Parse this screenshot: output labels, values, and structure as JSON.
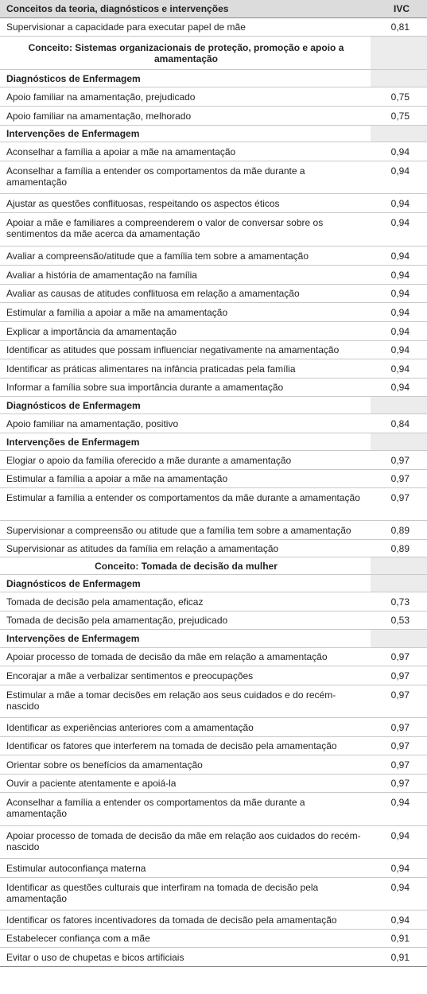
{
  "header": {
    "title": "Conceitos da teoria, diagnósticos e intervenções",
    "ivc": "IVC"
  },
  "rows": [
    {
      "type": "item",
      "text": "Supervisionar a capacidade para executar papel de mãe",
      "value": "0,81",
      "h": 23
    },
    {
      "type": "concept",
      "text": "Conceito: Sistemas organizacionais de proteção, promoção e apoio a amamentação",
      "value": "",
      "h": 42
    },
    {
      "type": "sec",
      "text": "Diagnósticos de Enfermagem",
      "value": "",
      "h": 22
    },
    {
      "type": "item",
      "text": "Apoio familiar na amamentação, prejudicado",
      "value": "0,75",
      "h": 24
    },
    {
      "type": "item",
      "text": "Apoio familiar na amamentação, melhorado",
      "value": "0,75",
      "h": 24
    },
    {
      "type": "sec",
      "text": "Intervenções de Enfermagem",
      "value": "",
      "h": 21
    },
    {
      "type": "item",
      "text": "Aconselhar a família a apoiar a mãe na amamentação",
      "value": "0,94",
      "h": 24
    },
    {
      "type": "item",
      "text": "Aconselhar a família a entender os comportamentos da mãe durante a amamentação",
      "value": "0,94",
      "h": 41
    },
    {
      "type": "item",
      "text": "Ajustar as questões conflituosas, respeitando os aspectos éticos",
      "value": "0,94",
      "h": 24
    },
    {
      "type": "item",
      "text": "Apoiar a mãe e familiares a compreenderem o valor de conversar sobre os sentimentos da mãe acerca da amamentação",
      "value": "0,94",
      "h": 42
    },
    {
      "type": "item",
      "text": "Avaliar a compreensão/atitude que a família tem sobre a amamentação",
      "value": "0,94",
      "h": 24
    },
    {
      "type": "item",
      "text": "Avaliar a história de amamentação na família",
      "value": "0,94",
      "h": 24
    },
    {
      "type": "item",
      "text": "Avaliar as causas de atitudes conflituosa em relação a amamentação",
      "value": "0,94",
      "h": 23
    },
    {
      "type": "item",
      "text": "Estimular a família a apoiar a mãe na amamentação",
      "value": "0,94",
      "h": 24
    },
    {
      "type": "item",
      "text": "Explicar a importância da amamentação",
      "value": "0,94",
      "h": 24
    },
    {
      "type": "item",
      "text": "Identificar as atitudes que possam influenciar negativamente na amamentação",
      "value": "0,94",
      "h": 23
    },
    {
      "type": "item",
      "text": "Identificar as práticas alimentares na infância praticadas pela família",
      "value": "0,94",
      "h": 24
    },
    {
      "type": "item",
      "text": "Informar a família sobre sua importância durante a amamentação",
      "value": "0,94",
      "h": 23
    },
    {
      "type": "sec",
      "text": "Diagnósticos de Enfermagem",
      "value": "",
      "h": 22
    },
    {
      "type": "item",
      "text": "Apoio familiar na amamentação, positivo",
      "value": "0,84",
      "h": 24
    },
    {
      "type": "sec",
      "text": "Intervenções de Enfermagem",
      "value": "",
      "h": 22
    },
    {
      "type": "item",
      "text": "Elogiar o apoio da família oferecido a mãe durante a amamentação",
      "value": "0,97",
      "h": 24
    },
    {
      "type": "item",
      "text": "Estimular a família a apoiar a mãe na amamentação",
      "value": "0,97",
      "h": 23
    },
    {
      "type": "item",
      "text": "Estimular a família a entender os comportamentos da mãe durante a amamentação",
      "value": "0,97",
      "h": 41
    },
    {
      "type": "item",
      "text": "Supervisionar a compreensão ou atitude que a família tem sobre a amamentação",
      "value": "0,89",
      "h": 24
    },
    {
      "type": "item",
      "text": "Supervisionar as atitudes da família em relação a amamentação",
      "value": "0,89",
      "h": 22
    },
    {
      "type": "concept",
      "text": "Conceito: Tomada de decisão da mulher",
      "value": "",
      "h": 22
    },
    {
      "type": "sec",
      "text": "Diagnósticos de Enfermagem",
      "value": "",
      "h": 22
    },
    {
      "type": "item",
      "text": "Tomada de decisão pela amamentação, eficaz",
      "value": "0,73",
      "h": 24
    },
    {
      "type": "item",
      "text": "Tomada de decisão pela amamentação, prejudicado",
      "value": "0,53",
      "h": 23
    },
    {
      "type": "sec",
      "text": "Intervenções de Enfermagem",
      "value": "",
      "h": 23
    },
    {
      "type": "item",
      "text": "Apoiar processo de tomada de decisão da mãe em relação a amamentação",
      "value": "0,97",
      "h": 23
    },
    {
      "type": "item",
      "text": "Encorajar a mãe a verbalizar sentimentos e preocupações",
      "value": "0,97",
      "h": 24
    },
    {
      "type": "item",
      "text": "Estimular a mãe a tomar decisões em relação aos seus cuidados e do recém-nascido",
      "value": "0,97",
      "h": 41
    },
    {
      "type": "item",
      "text": "Identificar as experiências anteriores com a amamentação",
      "value": "0,97",
      "h": 24
    },
    {
      "type": "item",
      "text": "Identificar os fatores que interferem na tomada de decisão pela amamentação",
      "value": "0,97",
      "h": 23
    },
    {
      "type": "item",
      "text": "Orientar sobre os benefícios da amamentação",
      "value": "0,97",
      "h": 24
    },
    {
      "type": "item",
      "text": "Ouvir a paciente atentamente e apoiá-la",
      "value": "0,97",
      "h": 23
    },
    {
      "type": "item",
      "text": "Aconselhar a família a entender os comportamentos da mãe durante a amamentação",
      "value": "0,94",
      "h": 42
    },
    {
      "type": "item",
      "text": "Apoiar processo de tomada de decisão da mãe em relação aos cuidados do recém-nascido",
      "value": "0,94",
      "h": 41
    },
    {
      "type": "item",
      "text": "Estimular autoconfiança materna",
      "value": "0,94",
      "h": 24
    },
    {
      "type": "item",
      "text": "Identificar as questões culturais que interfiram na tomada de decisão pela amamentação",
      "value": "0,94",
      "h": 41
    },
    {
      "type": "item",
      "text": "Identificar os fatores incentivadores da tomada de decisão pela amamentação",
      "value": "0,94",
      "h": 24
    },
    {
      "type": "item",
      "text": "Estabelecer confiança com a mãe",
      "value": "0,91",
      "h": 23
    },
    {
      "type": "item",
      "text": "Evitar o uso de chupetas e bicos artificiais",
      "value": "0,91",
      "h": 24
    }
  ]
}
